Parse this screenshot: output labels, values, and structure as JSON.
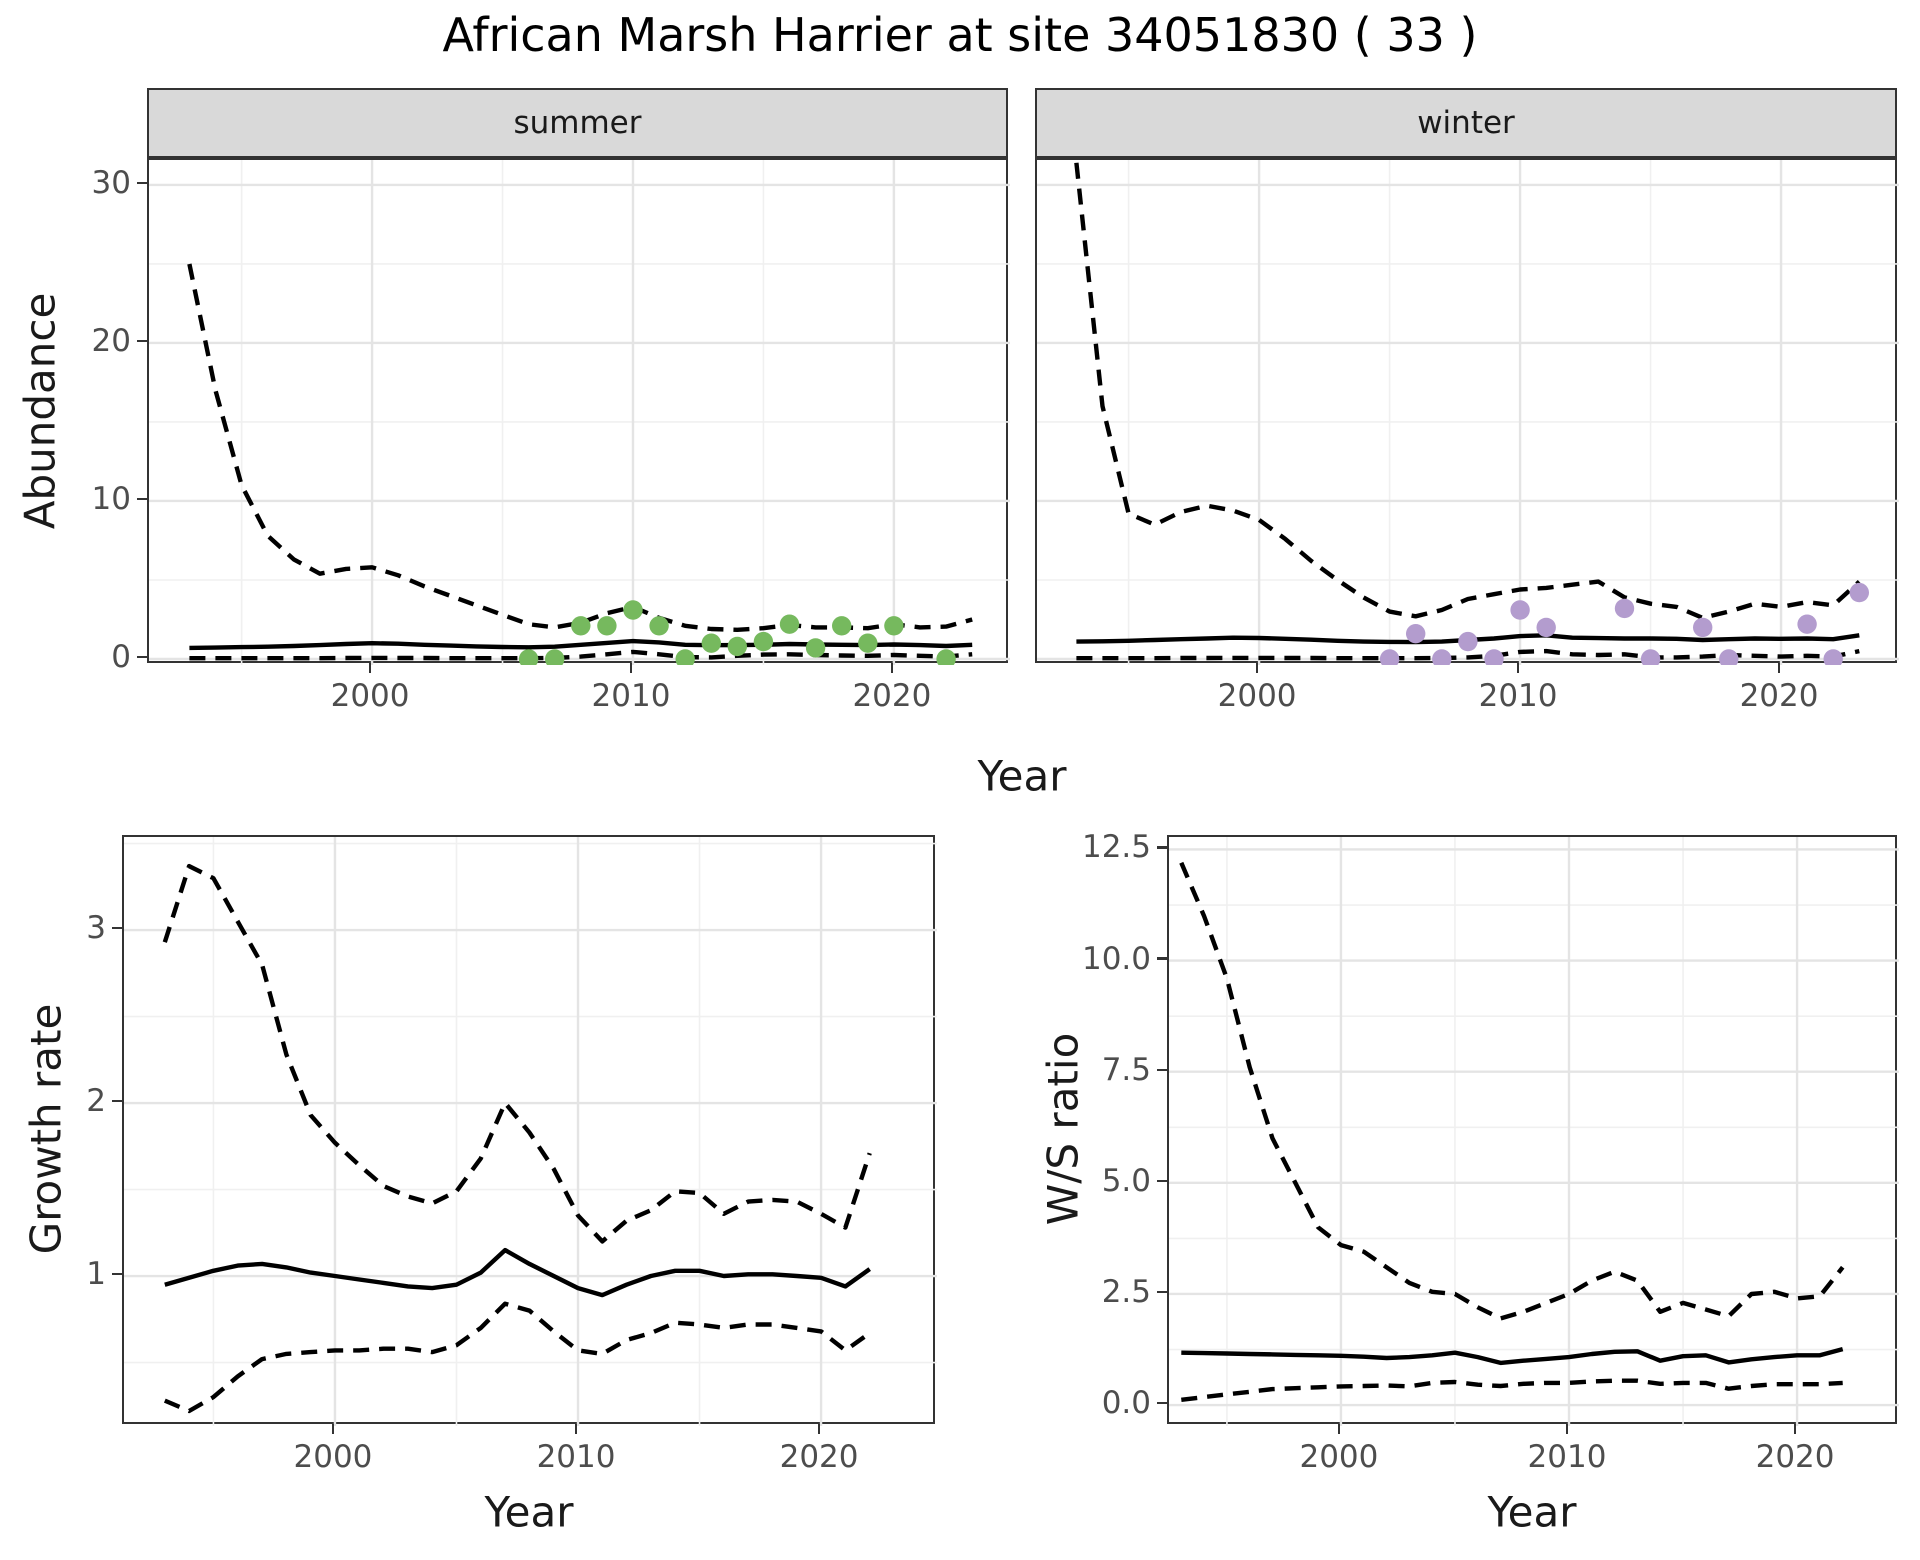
{
  "title": "African Marsh Harrier at site 34051830 ( 33 )",
  "facets": {
    "summer_label": "summer",
    "winter_label": "winter"
  },
  "axis_titles": {
    "abundance": "Abundance",
    "growth": "Growth rate",
    "ws": "W/S ratio",
    "year": "Year"
  },
  "colors": {
    "summer_point": "#76B95E",
    "winter_point": "#B39CCE",
    "line": "#000000",
    "grid_major": "#E4E4E4",
    "grid_minor": "#F0F0F0",
    "strip_bg": "#D9D9D9",
    "panel_border": "#333333",
    "tick_label": "#4D4D4D",
    "tick_mark": "#333333"
  },
  "chart_data": [
    {
      "name": "abundance-summer",
      "type": "line",
      "facet": "summer",
      "ylabel": "Abundance",
      "xlabel": "Year",
      "legend": "none",
      "grid": true,
      "x_range": [
        1991.45,
        2024.45
      ],
      "y_range": [
        -0.38,
        31.58
      ],
      "x_ticks": [
        2000,
        2010,
        2020
      ],
      "x_minor": [
        1995,
        2005,
        2015
      ],
      "y_ticks": [
        0,
        10,
        20,
        30
      ],
      "y_tick_labels": [
        "0",
        "10",
        "20",
        "30"
      ],
      "y_minor": [
        5,
        15,
        25
      ],
      "x": [
        1993,
        1994,
        1995,
        1996,
        1997,
        1998,
        1999,
        2000,
        2001,
        2002,
        2003,
        2004,
        2005,
        2006,
        2007,
        2008,
        2009,
        2010,
        2011,
        2012,
        2013,
        2014,
        2015,
        2016,
        2017,
        2018,
        2019,
        2020,
        2021,
        2022,
        2023
      ],
      "series": [
        {
          "name": "ci_upper_97.5",
          "style": "dashed",
          "values": [
            25,
            17,
            11,
            7.8,
            6.3,
            5.4,
            5.7,
            5.8,
            5.3,
            4.6,
            4.0,
            3.4,
            2.8,
            2.2,
            2.0,
            2.3,
            2.9,
            3.3,
            2.6,
            2.1,
            1.9,
            1.85,
            1.95,
            2.15,
            2.0,
            2.0,
            1.95,
            2.2,
            2.0,
            2.05,
            2.5
          ]
        },
        {
          "name": "median",
          "style": "solid",
          "values": [
            0.7,
            0.72,
            0.75,
            0.78,
            0.82,
            0.88,
            0.95,
            1.0,
            0.97,
            0.9,
            0.85,
            0.8,
            0.76,
            0.74,
            0.78,
            0.9,
            1.02,
            1.13,
            1.05,
            0.9,
            0.87,
            0.88,
            0.9,
            0.95,
            0.92,
            0.9,
            0.88,
            0.92,
            0.88,
            0.82,
            0.9
          ]
        },
        {
          "name": "ci_lower_2.5",
          "style": "dashed",
          "values": [
            0.05,
            0.05,
            0.05,
            0.05,
            0.05,
            0.05,
            0.06,
            0.07,
            0.06,
            0.06,
            0.05,
            0.05,
            0.05,
            0.05,
            0.06,
            0.15,
            0.3,
            0.45,
            0.3,
            0.12,
            0.1,
            0.2,
            0.28,
            0.3,
            0.25,
            0.22,
            0.2,
            0.25,
            0.2,
            0.15,
            0.3
          ]
        }
      ],
      "points": {
        "name": "observed_counts_summer",
        "color_key": "summer_point",
        "data": [
          [
            2006,
            0
          ],
          [
            2007,
            0
          ],
          [
            2008,
            2.1
          ],
          [
            2009,
            2.1
          ],
          [
            2010,
            3.1
          ],
          [
            2011,
            2.1
          ],
          [
            2012,
            0
          ],
          [
            2013,
            1.0
          ],
          [
            2014,
            0.8
          ],
          [
            2015,
            1.1
          ],
          [
            2016,
            2.2
          ],
          [
            2017,
            0.7
          ],
          [
            2018,
            2.1
          ],
          [
            2019,
            1.0
          ],
          [
            2020,
            2.1
          ],
          [
            2022,
            0
          ]
        ]
      }
    },
    {
      "name": "abundance-winter",
      "type": "line",
      "facet": "winter",
      "ylabel": "Abundance",
      "xlabel": "Year",
      "legend": "none",
      "grid": true,
      "x_range": [
        1991.49,
        2024.52
      ],
      "y_range": [
        -0.38,
        31.58
      ],
      "x_ticks": [
        2000,
        2010,
        2020
      ],
      "x_minor": [
        1995,
        2005,
        2015
      ],
      "y_ticks": [
        0,
        10,
        20,
        30
      ],
      "y_tick_labels": [
        "0",
        "10",
        "20",
        "30"
      ],
      "y_minor": [
        5,
        15,
        25
      ],
      "x": [
        1993,
        1994,
        1995,
        1996,
        1997,
        1998,
        1999,
        2000,
        2001,
        2002,
        2003,
        2004,
        2005,
        2006,
        2007,
        2008,
        2009,
        2010,
        2011,
        2012,
        2013,
        2014,
        2015,
        2016,
        2017,
        2018,
        2019,
        2020,
        2021,
        2022,
        2023
      ],
      "series": [
        {
          "name": "ci_upper_97.5",
          "style": "dashed",
          "values": [
            31.4,
            16,
            9.2,
            8.5,
            9.3,
            9.7,
            9.4,
            8.8,
            7.6,
            6.2,
            5.0,
            3.9,
            3.0,
            2.7,
            3.1,
            3.8,
            4.1,
            4.4,
            4.5,
            4.7,
            4.9,
            3.9,
            3.5,
            3.3,
            2.6,
            3.0,
            3.5,
            3.3,
            3.6,
            3.4,
            4.9
          ]
        },
        {
          "name": "median",
          "style": "solid",
          "values": [
            1.1,
            1.12,
            1.15,
            1.2,
            1.25,
            1.3,
            1.35,
            1.33,
            1.28,
            1.22,
            1.15,
            1.1,
            1.08,
            1.07,
            1.1,
            1.2,
            1.3,
            1.45,
            1.5,
            1.35,
            1.32,
            1.3,
            1.3,
            1.28,
            1.2,
            1.25,
            1.3,
            1.28,
            1.3,
            1.25,
            1.5
          ]
        },
        {
          "name": "ci_lower_2.5",
          "style": "dashed",
          "values": [
            0.05,
            0.05,
            0.05,
            0.05,
            0.06,
            0.06,
            0.07,
            0.07,
            0.06,
            0.06,
            0.05,
            0.05,
            0.05,
            0.05,
            0.06,
            0.1,
            0.2,
            0.45,
            0.5,
            0.3,
            0.25,
            0.3,
            0.1,
            0.1,
            0.15,
            0.25,
            0.2,
            0.15,
            0.2,
            0.15,
            0.5
          ]
        }
      ],
      "points": {
        "name": "observed_counts_winter",
        "color_key": "winter_point",
        "data": [
          [
            2005,
            0
          ],
          [
            2006,
            1.6
          ],
          [
            2007,
            0
          ],
          [
            2008,
            1.1
          ],
          [
            2009,
            0
          ],
          [
            2010,
            3.1
          ],
          [
            2011,
            2.0
          ],
          [
            2014,
            3.2
          ],
          [
            2015,
            0
          ],
          [
            2017,
            2.0
          ],
          [
            2018,
            0
          ],
          [
            2021,
            2.2
          ],
          [
            2022,
            0
          ],
          [
            2023,
            4.2
          ]
        ]
      }
    },
    {
      "name": "growth-rate",
      "type": "line",
      "facet": "",
      "ylabel": "Growth rate",
      "xlabel": "Year",
      "legend": "none",
      "grid": true,
      "x_range": [
        1991.32,
        2024.77
      ],
      "y_range": [
        0.133,
        3.538
      ],
      "x_ticks": [
        2000,
        2010,
        2020
      ],
      "x_minor": [
        1995,
        2005,
        2015
      ],
      "y_ticks": [
        1,
        2,
        3
      ],
      "y_tick_labels": [
        "1",
        "2",
        "3"
      ],
      "y_minor": [
        0.5,
        1.5,
        2.5,
        3.5
      ],
      "x": [
        1993,
        1994,
        1995,
        1996,
        1997,
        1998,
        1999,
        2000,
        2001,
        2002,
        2003,
        2004,
        2005,
        2006,
        2007,
        2008,
        2009,
        2010,
        2011,
        2012,
        2013,
        2014,
        2015,
        2016,
        2017,
        2018,
        2019,
        2020,
        2021,
        2022
      ],
      "series": [
        {
          "name": "ci_upper_97.5",
          "style": "dashed",
          "values": [
            2.93,
            3.37,
            3.3,
            3.05,
            2.8,
            2.28,
            1.93,
            1.77,
            1.64,
            1.52,
            1.46,
            1.42,
            1.49,
            1.68,
            2.0,
            1.83,
            1.62,
            1.35,
            1.2,
            1.32,
            1.38,
            1.49,
            1.48,
            1.36,
            1.43,
            1.44,
            1.43,
            1.36,
            1.28,
            1.71
          ]
        },
        {
          "name": "median",
          "style": "solid",
          "values": [
            0.95,
            0.99,
            1.03,
            1.06,
            1.07,
            1.05,
            1.02,
            1.0,
            0.98,
            0.96,
            0.94,
            0.93,
            0.95,
            1.02,
            1.15,
            1.07,
            1.0,
            0.93,
            0.89,
            0.95,
            1.0,
            1.03,
            1.03,
            1.0,
            1.01,
            1.01,
            1.0,
            0.99,
            0.94,
            1.04
          ]
        },
        {
          "name": "ci_lower_2.5",
          "style": "dashed",
          "values": [
            0.28,
            0.22,
            0.3,
            0.42,
            0.52,
            0.55,
            0.56,
            0.57,
            0.57,
            0.58,
            0.58,
            0.56,
            0.6,
            0.7,
            0.84,
            0.8,
            0.68,
            0.57,
            0.55,
            0.63,
            0.67,
            0.73,
            0.72,
            0.7,
            0.72,
            0.72,
            0.7,
            0.68,
            0.57,
            0.67
          ]
        }
      ]
    },
    {
      "name": "ws-ratio",
      "type": "line",
      "facet": "",
      "ylabel": "W/S ratio",
      "xlabel": "Year",
      "legend": "none",
      "grid": true,
      "x_range": [
        1992.46,
        2024.47
      ],
      "y_range": [
        -0.47,
        12.78
      ],
      "x_ticks": [
        2000,
        2010,
        2020
      ],
      "x_minor": [
        1995,
        2005,
        2015
      ],
      "y_ticks": [
        0,
        2.5,
        5,
        7.5,
        10,
        12.5
      ],
      "y_tick_labels": [
        "0.0",
        "2.5",
        "5.0",
        "7.5",
        "10.0",
        "12.5"
      ],
      "y_minor": [
        1.25,
        3.75,
        6.25,
        8.75,
        11.25
      ],
      "x": [
        1993,
        1994,
        1995,
        1996,
        1997,
        1998,
        1999,
        2000,
        2001,
        2002,
        2003,
        2004,
        2005,
        2006,
        2007,
        2008,
        2009,
        2010,
        2011,
        2012,
        2013,
        2014,
        2015,
        2016,
        2017,
        2018,
        2019,
        2020,
        2021,
        2022
      ],
      "series": [
        {
          "name": "ci_upper_97.5",
          "style": "dashed",
          "values": [
            12.2,
            11.0,
            9.6,
            7.6,
            6.0,
            5.0,
            4.0,
            3.6,
            3.45,
            3.1,
            2.75,
            2.55,
            2.5,
            2.2,
            1.95,
            2.1,
            2.3,
            2.5,
            2.8,
            3.0,
            2.8,
            2.1,
            2.3,
            2.15,
            2.0,
            2.5,
            2.55,
            2.4,
            2.45,
            3.1
          ]
        },
        {
          "name": "median",
          "style": "solid",
          "values": [
            1.18,
            1.17,
            1.16,
            1.15,
            1.14,
            1.13,
            1.12,
            1.11,
            1.09,
            1.06,
            1.08,
            1.12,
            1.18,
            1.08,
            0.95,
            1.0,
            1.04,
            1.08,
            1.15,
            1.2,
            1.21,
            1.0,
            1.1,
            1.12,
            0.96,
            1.03,
            1.08,
            1.12,
            1.12,
            1.26
          ]
        },
        {
          "name": "ci_lower_2.5",
          "style": "dashed",
          "values": [
            0.12,
            0.18,
            0.24,
            0.3,
            0.36,
            0.38,
            0.4,
            0.42,
            0.43,
            0.44,
            0.42,
            0.5,
            0.52,
            0.46,
            0.43,
            0.48,
            0.5,
            0.5,
            0.53,
            0.55,
            0.55,
            0.48,
            0.5,
            0.5,
            0.37,
            0.43,
            0.47,
            0.47,
            0.47,
            0.5
          ]
        }
      ]
    }
  ]
}
